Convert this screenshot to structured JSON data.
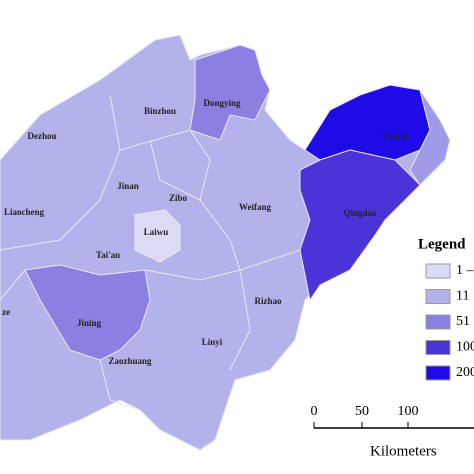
{
  "map": {
    "labels": [
      "Binzhou",
      "Dongying",
      "Dezhou",
      "Jinan",
      "Zibo",
      "Weifang",
      "Liaocheng",
      "Laiwu",
      "Qingdao",
      "Tai'an",
      "Rizhao",
      "Jining",
      "Linyi",
      "Zaozhuang",
      "ze",
      "Yantai"
    ],
    "legend": {
      "title": "Legend",
      "items": [
        {
          "label": "1 –",
          "color": "#dcdbf4"
        },
        {
          "label": "11",
          "color": "#b4b2ea"
        },
        {
          "label": "51",
          "color": "#8b80e2"
        },
        {
          "label": "100",
          "color": "#4a33d9"
        },
        {
          "label": "200",
          "color": "#1f0be6"
        }
      ]
    },
    "scale": {
      "ticks": [
        "0",
        "50",
        "100"
      ],
      "unit": "Kilometers"
    }
  }
}
